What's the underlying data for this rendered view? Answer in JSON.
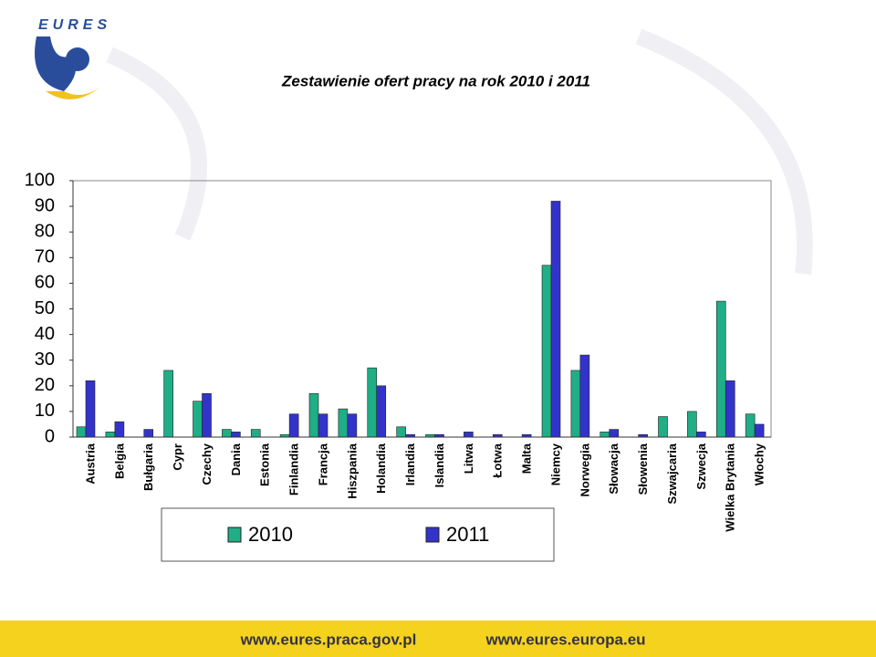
{
  "logo": "EURES",
  "chart_data": {
    "type": "bar",
    "title": "Zestawienie ofert pracy na rok 2010 i 2011",
    "categories": [
      "Austria",
      "Belgia",
      "Bułgaria",
      "Cypr",
      "Czechy",
      "Dania",
      "Estonia",
      "Finlandia",
      "Francja",
      "Hiszpania",
      "Holandia",
      "Irlandia",
      "Islandia",
      "Litwa",
      "Łotwa",
      "Malta",
      "Niemcy",
      "Norwegia",
      "Słowacja",
      "Słowenia",
      "Szwajcaria",
      "Szwecja",
      "Wielka Brytania",
      "Włochy"
    ],
    "series": [
      {
        "name": "2010",
        "color": "#1fae86",
        "values": [
          4,
          2,
          0,
          26,
          14,
          3,
          3,
          1,
          17,
          11,
          27,
          4,
          1,
          0,
          0,
          0,
          67,
          26,
          2,
          0,
          8,
          10,
          53,
          9
        ]
      },
      {
        "name": "2011",
        "color": "#3333cc",
        "values": [
          22,
          6,
          3,
          0,
          17,
          2,
          0,
          9,
          9,
          9,
          20,
          1,
          1,
          2,
          1,
          1,
          92,
          32,
          3,
          1,
          0,
          2,
          22,
          5
        ]
      }
    ],
    "ylim": [
      0,
      100
    ],
    "yticks": [
      0,
      10,
      20,
      30,
      40,
      50,
      60,
      70,
      80,
      90,
      100
    ]
  },
  "footer": {
    "links": [
      "www.eures.praca.gov.pl",
      "www.eures.europa.eu"
    ]
  }
}
